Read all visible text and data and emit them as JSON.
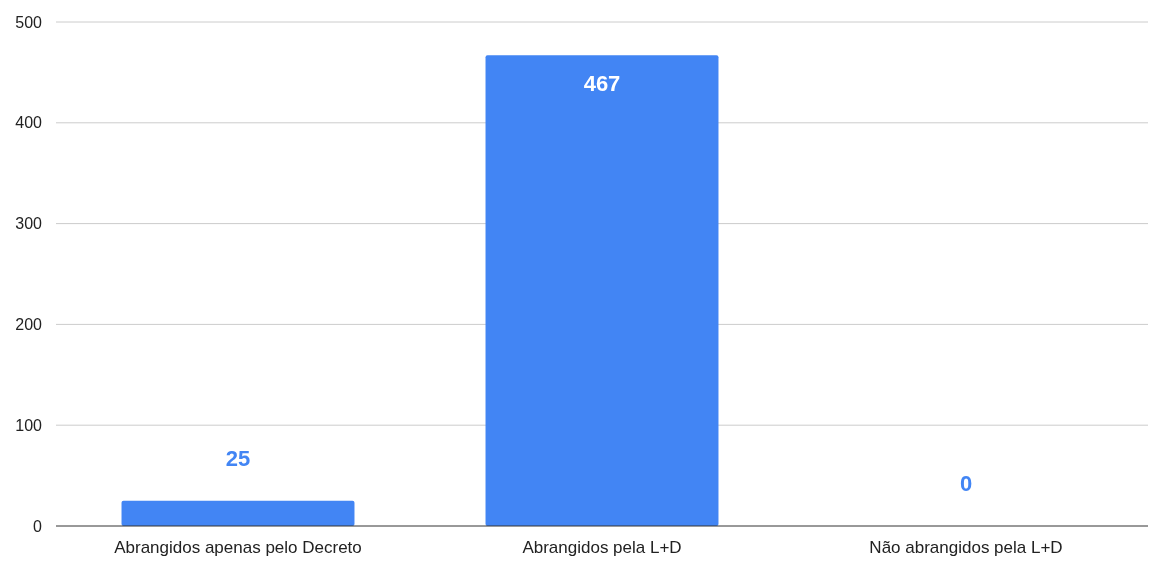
{
  "chart_data": {
    "type": "bar",
    "categories": [
      "Abrangidos apenas pelo Decreto",
      "Abrangidos pela L+D",
      "Não abrangidos pela L+D"
    ],
    "values": [
      25,
      467,
      0
    ],
    "color": "#4285f4",
    "ylim": [
      0,
      500
    ],
    "yticks": [
      0,
      100,
      200,
      300,
      400,
      500
    ],
    "grid": "y",
    "data_labels": true
  }
}
